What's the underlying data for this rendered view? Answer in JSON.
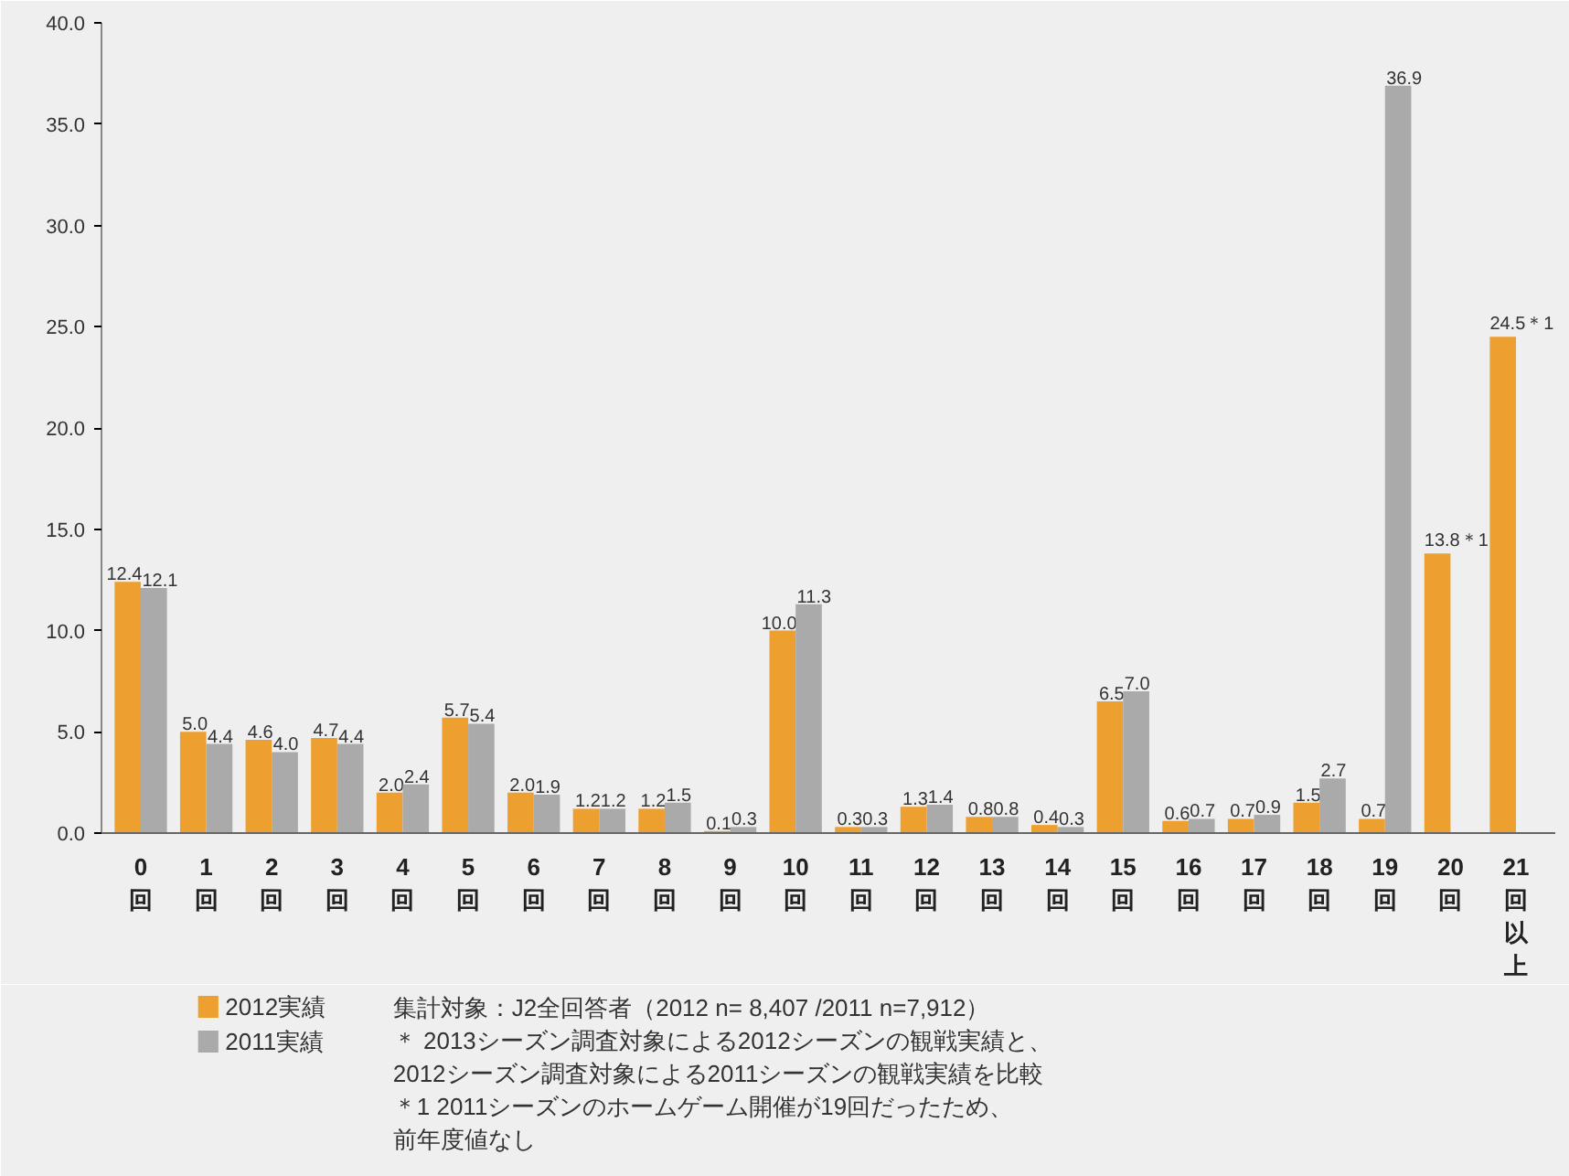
{
  "chart_data": {
    "type": "bar",
    "categories": [
      "0回",
      "1回",
      "2回",
      "3回",
      "4回",
      "5回",
      "6回",
      "7回",
      "8回",
      "9回",
      "10回",
      "11回",
      "12回",
      "13回",
      "14回",
      "15回",
      "16回",
      "17回",
      "18回",
      "19回",
      "20回",
      "21回以上"
    ],
    "series": [
      {
        "name": "2012実績",
        "color": "#eda030",
        "values": [
          12.4,
          5.0,
          4.6,
          4.7,
          2.0,
          5.7,
          2.0,
          1.2,
          1.2,
          0.1,
          10.0,
          0.3,
          1.3,
          0.8,
          0.4,
          6.5,
          0.6,
          0.7,
          1.5,
          0.7,
          13.8,
          24.5
        ],
        "value_labels": [
          "12.4",
          "5.0",
          "4.6",
          "4.7",
          "2.0",
          "5.7",
          "2.0",
          "1.2",
          "1.2",
          "0.1",
          "10.0",
          "0.3",
          "1.3",
          "0.8",
          "0.4",
          "6.5",
          "0.6",
          "0.7",
          "1.5",
          "0.7",
          "13.8＊1",
          "24.5＊1"
        ]
      },
      {
        "name": "2011実績",
        "color": "#a9aaa9",
        "values": [
          12.1,
          4.4,
          4.0,
          4.4,
          2.4,
          5.4,
          1.9,
          1.2,
          1.5,
          0.3,
          11.3,
          0.3,
          1.4,
          0.8,
          0.3,
          7.0,
          0.7,
          0.9,
          2.7,
          36.9,
          null,
          null
        ],
        "value_labels": [
          "12.1",
          "4.4",
          "4.0",
          "4.4",
          "2.4",
          "5.4",
          "1.9",
          "1.2",
          "1.5",
          "0.3",
          "11.3",
          "0.3",
          "1.4",
          "0.8",
          "0.3",
          "7.0",
          "0.7",
          "0.9",
          "2.7",
          "36.9",
          null,
          null
        ]
      }
    ],
    "ylim": [
      0,
      40
    ],
    "yticks": [
      {
        "value": 0,
        "label": "0.0"
      },
      {
        "value": 5,
        "label": "5.0"
      },
      {
        "value": 10,
        "label": "10.0"
      },
      {
        "value": 15,
        "label": "15.0"
      },
      {
        "value": 20,
        "label": "20.0"
      },
      {
        "value": 25,
        "label": "25.0"
      },
      {
        "value": 30,
        "label": "30.0"
      },
      {
        "value": 35,
        "label": "35.0"
      },
      {
        "value": 40,
        "label": "40.0"
      }
    ],
    "grid": false,
    "legend": "bottom left",
    "annotations": [
      "集計対象：J2全回答者（2012 n= 8,407 /2011 n=7,912）",
      "＊ 2013シーズン調査対象による2012シーズンの観戦実績と、",
      "2012シーズン調査対象による2011シーズンの観戦実績を比較",
      "＊1 2011シーズンのホームゲーム開催が19回だったため、",
      "前年度値なし"
    ]
  }
}
